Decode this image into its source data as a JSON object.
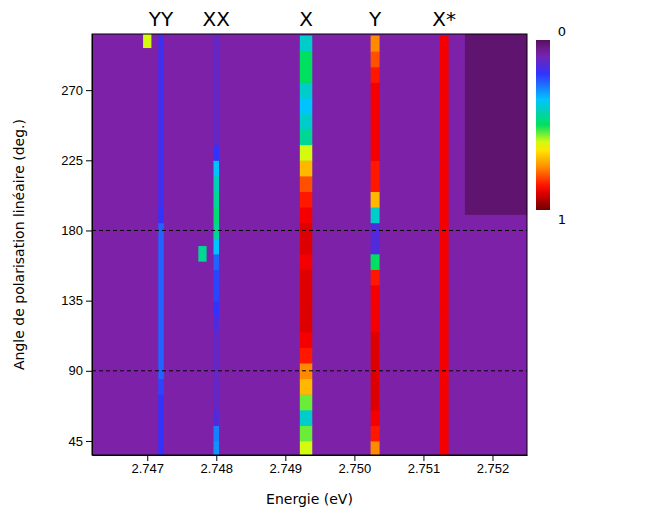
{
  "chart_data": {
    "type": "heatmap",
    "x_label": "Energie (eV)",
    "y_label": "Angle de polarisation linéaire (deg.)",
    "xlim": [
      2.7462,
      2.7525
    ],
    "xticks": [
      2.747,
      2.748,
      2.749,
      2.75,
      2.751,
      2.752
    ],
    "xtick_labels": [
      "2.747",
      "2.748",
      "2.749",
      "2.750",
      "2.751",
      "2.752"
    ],
    "ylim": [
      36,
      306
    ],
    "yticks": [
      45,
      90,
      135,
      180,
      225,
      270
    ],
    "y": [
      40,
      50,
      60,
      70,
      80,
      90,
      100,
      110,
      120,
      130,
      140,
      150,
      160,
      170,
      180,
      190,
      200,
      210,
      220,
      230,
      240,
      250,
      260,
      270,
      280,
      290,
      300
    ],
    "row_height": 10,
    "background": 0.08,
    "regions": [
      {
        "xlim": [
          2.7516,
          2.7525
        ],
        "ylim": [
          190,
          306
        ],
        "value": 0.02
      }
    ],
    "lines": [
      {
        "name": "YY",
        "energy": 2.7472,
        "width": 8e-05,
        "values": [
          0.2,
          0.2,
          0.2,
          0.2,
          0.22,
          0.25,
          0.25,
          0.25,
          0.25,
          0.25,
          0.25,
          0.25,
          0.25,
          0.25,
          0.25,
          0.2,
          0.18,
          0.18,
          0.18,
          0.18,
          0.18,
          0.18,
          0.18,
          0.18,
          0.18,
          0.18,
          0.18
        ]
      },
      {
        "name": "XX",
        "energy": 2.748,
        "width": 8e-05,
        "values": [
          0.3,
          0.28,
          0.15,
          0.12,
          0.12,
          0.12,
          0.12,
          0.12,
          0.15,
          0.2,
          0.22,
          0.22,
          0.25,
          0.35,
          0.45,
          0.48,
          0.45,
          0.42,
          0.35,
          0.2,
          0.12,
          0.12,
          0.12,
          0.12,
          0.12,
          0.12,
          0.12
        ]
      },
      {
        "name": "X",
        "energy": 2.7493,
        "width": 0.00018,
        "values": [
          0.6,
          0.55,
          0.4,
          0.55,
          0.7,
          0.75,
          0.85,
          0.88,
          0.9,
          0.9,
          0.9,
          0.9,
          0.88,
          0.9,
          0.9,
          0.88,
          0.85,
          0.8,
          0.7,
          0.6,
          0.45,
          0.4,
          0.35,
          0.4,
          0.5,
          0.5,
          0.4
        ]
      },
      {
        "name": "Y",
        "energy": 2.7503,
        "width": 0.00013,
        "values": [
          0.75,
          0.85,
          0.88,
          0.9,
          0.9,
          0.9,
          0.9,
          0.9,
          0.88,
          0.88,
          0.88,
          0.85,
          0.5,
          0.15,
          0.15,
          0.4,
          0.7,
          0.85,
          0.85,
          0.88,
          0.88,
          0.88,
          0.88,
          0.88,
          0.85,
          0.8,
          0.75
        ]
      },
      {
        "name": "X*",
        "energy": 2.7513,
        "width": 0.00013,
        "values": [
          0.88,
          0.88,
          0.88,
          0.88,
          0.88,
          0.88,
          0.88,
          0.88,
          0.88,
          0.88,
          0.88,
          0.88,
          0.88,
          0.88,
          0.88,
          0.88,
          0.88,
          0.88,
          0.88,
          0.88,
          0.88,
          0.88,
          0.88,
          0.88,
          0.88,
          0.88,
          0.88
        ]
      }
    ],
    "spots": [
      {
        "x": 2.7478,
        "y": 165,
        "value": 0.45
      },
      {
        "x": 2.747,
        "y": 302,
        "value": 0.6
      }
    ],
    "hlines": [
      90,
      180
    ],
    "colorbar": {
      "range": [
        0,
        1
      ],
      "ticks": [
        0,
        1
      ]
    }
  }
}
